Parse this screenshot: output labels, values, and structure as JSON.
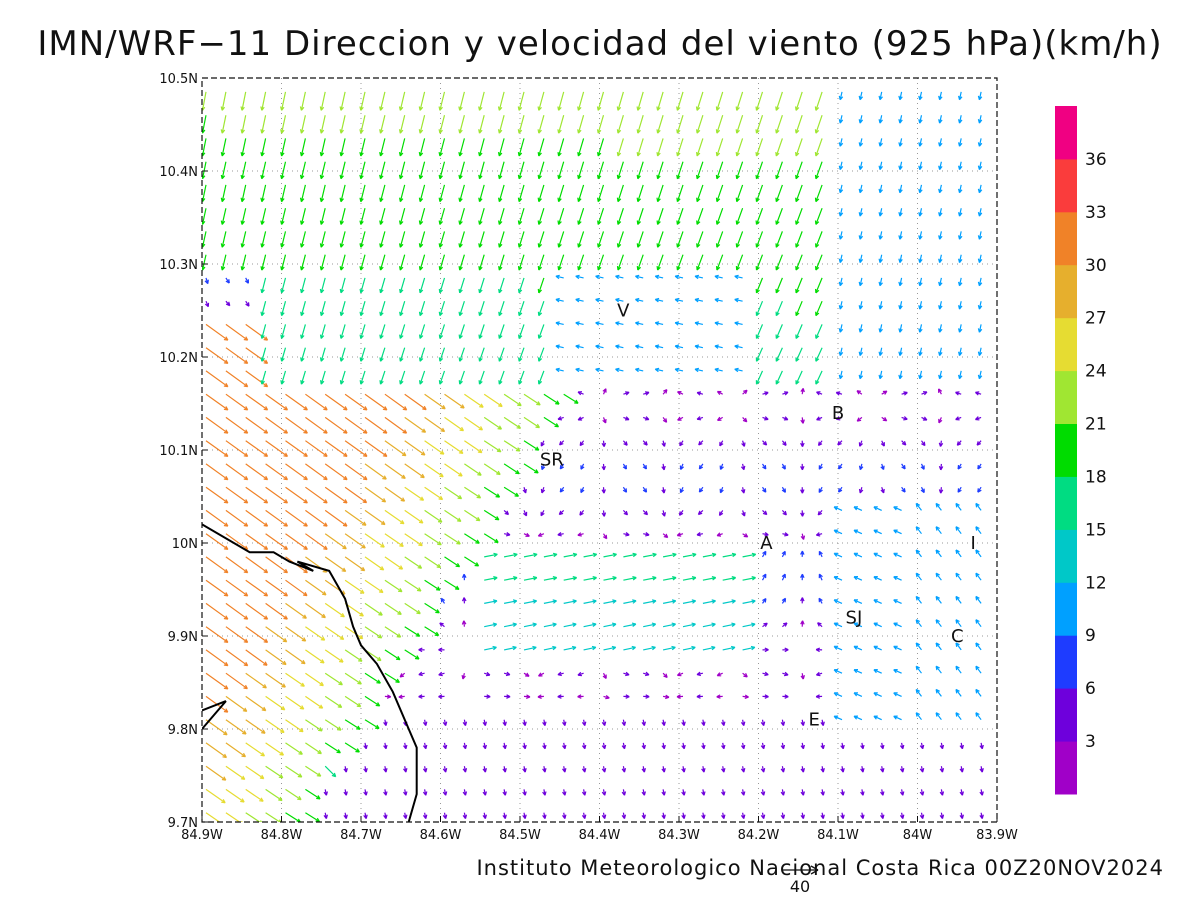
{
  "title": "IMN/WRF−11 Direccion y velocidad del viento (925 hPa)(km/h)",
  "footer": "Instituto Meteorologico Nacional Costa Rica 00Z20NOV2024",
  "reference_vector": {
    "value": 40,
    "label": "40"
  },
  "axes": {
    "lon_range": [
      -84.9,
      -83.9
    ],
    "lat_range": [
      9.7,
      10.5
    ],
    "x_ticks": [
      {
        "value": -84.9,
        "label": "84.9W"
      },
      {
        "value": -84.8,
        "label": "84.8W"
      },
      {
        "value": -84.7,
        "label": "84.7W"
      },
      {
        "value": -84.6,
        "label": "84.6W"
      },
      {
        "value": -84.5,
        "label": "84.5W"
      },
      {
        "value": -84.4,
        "label": "84.4W"
      },
      {
        "value": -84.3,
        "label": "84.3W"
      },
      {
        "value": -84.2,
        "label": "84.2W"
      },
      {
        "value": -84.1,
        "label": "84.1W"
      },
      {
        "value": -84.0,
        "label": "84W"
      },
      {
        "value": -83.9,
        "label": "83.9W"
      }
    ],
    "y_ticks": [
      {
        "value": 9.7,
        "label": "9.7N"
      },
      {
        "value": 9.8,
        "label": "9.8N"
      },
      {
        "value": 9.9,
        "label": "9.9N"
      },
      {
        "value": 10.0,
        "label": "10N"
      },
      {
        "value": 10.1,
        "label": "10.1N"
      },
      {
        "value": 10.2,
        "label": "10.2N"
      },
      {
        "value": 10.3,
        "label": "10.3N"
      },
      {
        "value": 10.4,
        "label": "10.4N"
      },
      {
        "value": 10.5,
        "label": "10.5N"
      }
    ],
    "grid": "dotted"
  },
  "colorbar": {
    "labels": [
      "3",
      "6",
      "9",
      "12",
      "15",
      "18",
      "21",
      "24",
      "27",
      "30",
      "33",
      "36"
    ],
    "colors": [
      "#a000c8",
      "#6e00dc",
      "#1e3cff",
      "#00a0ff",
      "#00c8c8",
      "#00dc82",
      "#00dc00",
      "#a0e632",
      "#e6dc32",
      "#e6af2d",
      "#f08228",
      "#fa3c3c",
      "#f00082"
    ]
  },
  "places": [
    {
      "label": "V",
      "lon": -84.37,
      "lat": 10.25
    },
    {
      "label": "B",
      "lon": -84.1,
      "lat": 10.14
    },
    {
      "label": "SR",
      "lon": -84.46,
      "lat": 10.09
    },
    {
      "label": "A",
      "lon": -84.19,
      "lat": 10.0
    },
    {
      "label": "I",
      "lon": -83.93,
      "lat": 10.0
    },
    {
      "label": "SJ",
      "lon": -84.08,
      "lat": 9.92
    },
    {
      "label": "C",
      "lon": -83.95,
      "lat": 9.9
    },
    {
      "label": "E",
      "lon": -84.13,
      "lat": 9.81
    }
  ],
  "coastline": [
    [
      -84.9,
      10.02
    ],
    [
      -84.84,
      9.99
    ],
    [
      -84.81,
      9.99
    ],
    [
      -84.79,
      9.98
    ],
    [
      -84.76,
      9.97
    ],
    [
      -84.78,
      9.98
    ],
    [
      -84.74,
      9.97
    ],
    [
      -84.72,
      9.94
    ],
    [
      -84.71,
      9.91
    ],
    [
      -84.7,
      9.89
    ],
    [
      -84.68,
      9.87
    ],
    [
      -84.66,
      9.84
    ],
    [
      -84.64,
      9.8
    ],
    [
      -84.63,
      9.78
    ],
    [
      -84.63,
      9.73
    ],
    [
      -84.64,
      9.7
    ]
  ],
  "coastline_2": [
    [
      -84.9,
      9.8
    ],
    [
      -84.87,
      9.83
    ],
    [
      -84.9,
      9.82
    ]
  ],
  "chart_data": {
    "type": "vector_field",
    "title": "IMN/WRF−11 Direccion y velocidad del viento (925 hPa)(km/h)",
    "units": "km/h",
    "level": "925 hPa",
    "field_notes": "NW-to-SE flow of 27–36 km/h over the Pacific SW corner; N-to-S flow of 12–21 km/h across the northern half; weak 3–9 km/h variable winds over the central valley near SR, A, B; NE flow of 12–18 km/h near the eastern edge."
  }
}
